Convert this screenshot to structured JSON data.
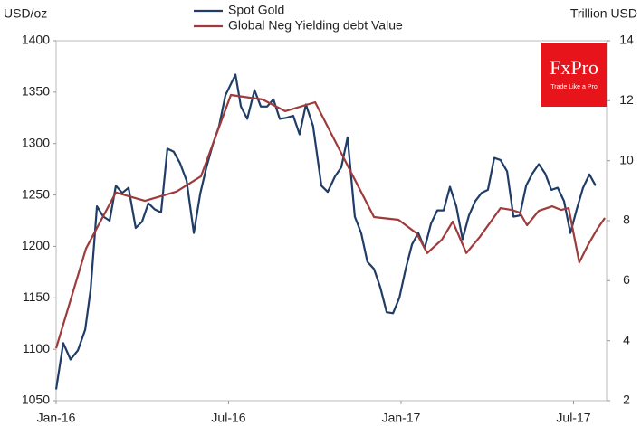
{
  "chart_data": {
    "type": "line",
    "y_label": "USD/oz",
    "y2_label": "Trillion USD",
    "xlim": [
      0,
      19.15
    ],
    "xticks": [
      {
        "value": 0,
        "label": "Jan-16"
      },
      {
        "value": 6,
        "label": "Jul-16"
      },
      {
        "value": 12,
        "label": "Jan-17"
      },
      {
        "value": 18,
        "label": "Jul-17"
      }
    ],
    "ylim": [
      1050,
      1400
    ],
    "yticks": [
      1050,
      1100,
      1150,
      1200,
      1250,
      1300,
      1350,
      1400
    ],
    "y2lim": [
      2,
      14
    ],
    "y2ticks": [
      2,
      4,
      6,
      8,
      10,
      12,
      14
    ],
    "grid": false,
    "series": [
      {
        "name": "Spot Gold",
        "color": "#1f3d66",
        "x": [
          0,
          0.25,
          0.5,
          0.76,
          1.01,
          1.2,
          1.42,
          1.64,
          1.86,
          2.08,
          2.3,
          2.52,
          2.77,
          2.99,
          3.21,
          3.43,
          3.65,
          3.87,
          4.09,
          4.31,
          4.54,
          4.79,
          5.01,
          5.23,
          5.45,
          5.67,
          5.89,
          6.24,
          6.43,
          6.65,
          6.9,
          7.12,
          7.34,
          7.56,
          7.78,
          8.0,
          8.25,
          8.47,
          8.69,
          8.94,
          9.23,
          9.45,
          9.7,
          9.92,
          10.14,
          10.39,
          10.61,
          10.83,
          11.06,
          11.28,
          11.5,
          11.72,
          11.94,
          12.16,
          12.38,
          12.6,
          12.82,
          13.04,
          13.26,
          13.48,
          13.7,
          13.92,
          14.14,
          14.36,
          14.58,
          14.8,
          15.02,
          15.24,
          15.46,
          15.69,
          15.91,
          16.13,
          16.35,
          16.57,
          16.79,
          17.01,
          17.23,
          17.45,
          17.67,
          17.89,
          18.11,
          18.33,
          18.55,
          18.77
        ],
        "values": [
          1061,
          1106,
          1090,
          1099,
          1119,
          1158,
          1239,
          1229,
          1225,
          1259,
          1252,
          1257,
          1218,
          1224,
          1242,
          1236,
          1233,
          1295,
          1292,
          1281,
          1264,
          1213,
          1251,
          1277,
          1299,
          1317,
          1347,
          1367,
          1336,
          1324,
          1352,
          1336,
          1336,
          1343,
          1324,
          1325,
          1327,
          1309,
          1338,
          1317,
          1259,
          1253,
          1268,
          1277,
          1306,
          1229,
          1213,
          1185,
          1178,
          1160,
          1136,
          1135,
          1150,
          1178,
          1202,
          1213,
          1198,
          1222,
          1235,
          1235,
          1258,
          1239,
          1207,
          1230,
          1244,
          1252,
          1255,
          1286,
          1284,
          1273,
          1229,
          1230,
          1259,
          1271,
          1280,
          1271,
          1255,
          1257,
          1244,
          1213,
          1236,
          1257,
          1270,
          1259
        ]
      },
      {
        "name": "Global Neg Yielding debt Value",
        "color": "#9e3b3b",
        "axis": "y2",
        "x": [
          0,
          1.04,
          2.08,
          3.09,
          4.19,
          5.04,
          6.08,
          7.18,
          7.97,
          9.01,
          11.06,
          11.91,
          12.54,
          12.91,
          13.42,
          13.8,
          14.27,
          14.74,
          15.46,
          15.84,
          16.13,
          16.38,
          16.79,
          17.26,
          17.57,
          17.83,
          18.2,
          18.52,
          18.83,
          19.09
        ],
        "values": [
          3.75,
          7.07,
          8.94,
          8.66,
          8.97,
          9.48,
          12.19,
          12.04,
          11.65,
          11.95,
          8.12,
          8.03,
          7.58,
          6.92,
          7.37,
          7.97,
          6.92,
          7.46,
          8.42,
          8.36,
          8.27,
          7.85,
          8.33,
          8.48,
          8.36,
          8.42,
          6.61,
          7.22,
          7.73,
          8.09
        ]
      }
    ]
  },
  "logo": {
    "title": "FxPro",
    "subtitle": "Trade Like a Pro"
  }
}
